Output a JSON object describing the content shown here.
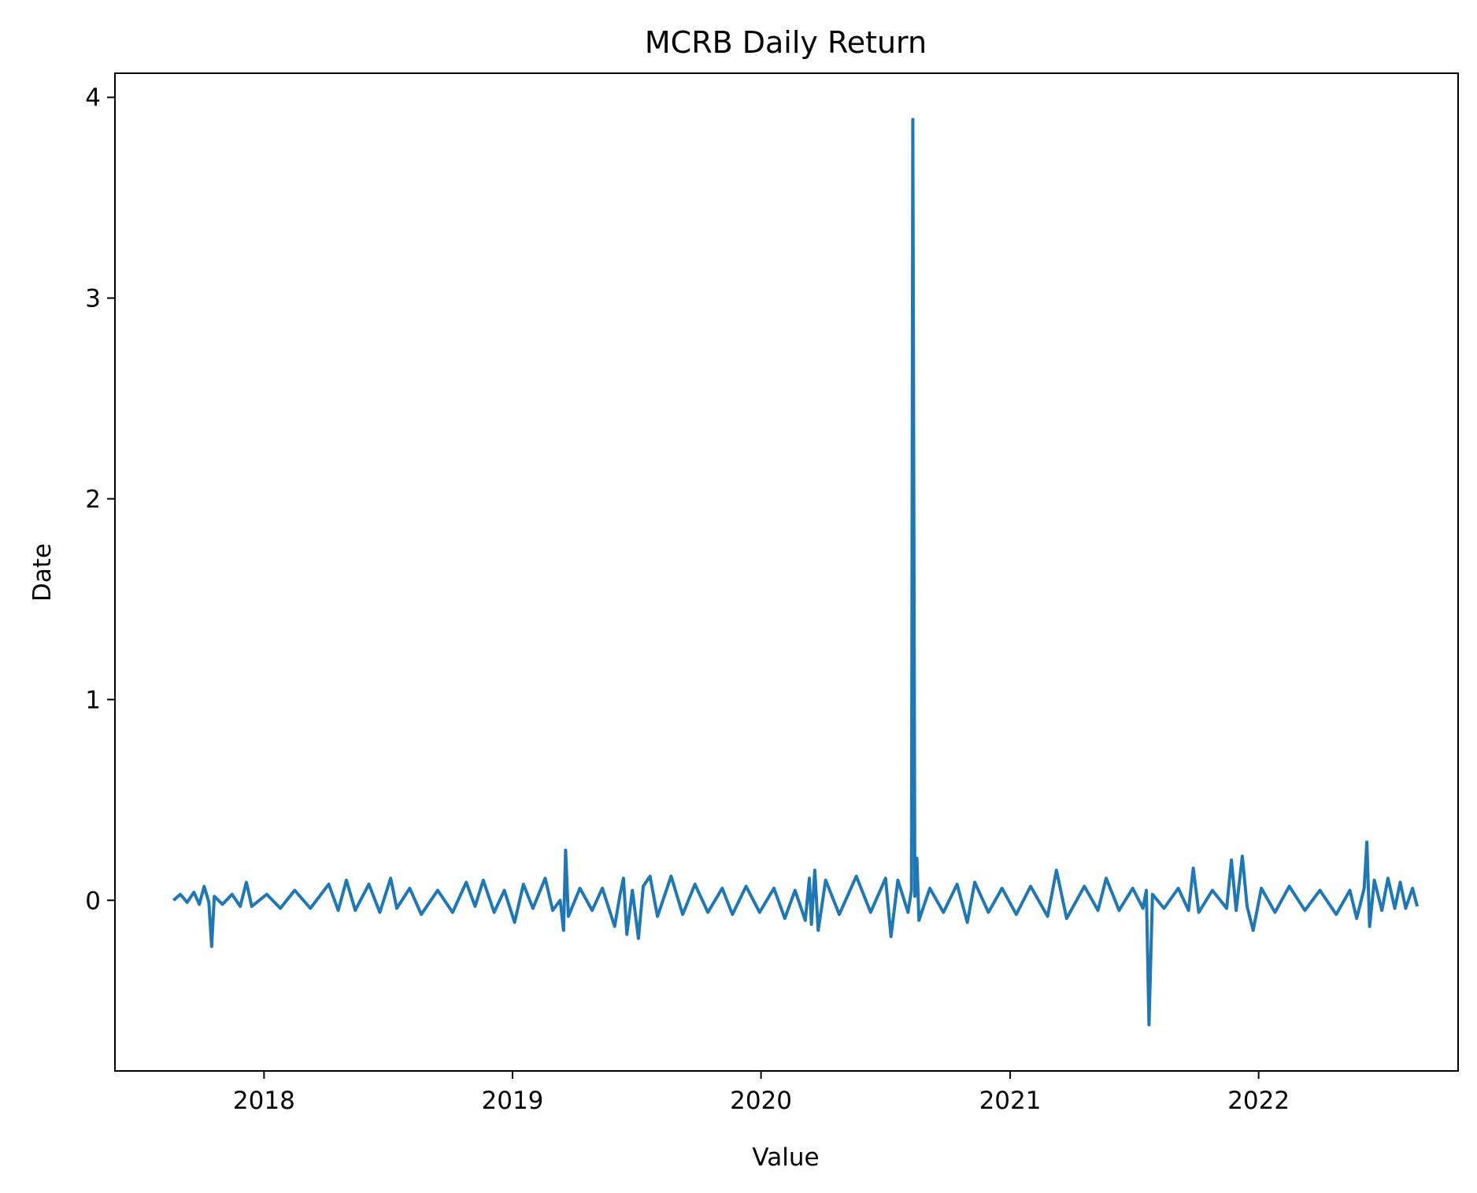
{
  "chart_data": {
    "type": "line",
    "title": "MCRB Daily Return",
    "xlabel": "Value",
    "ylabel": "Date",
    "x_ticks": [
      "2018",
      "2019",
      "2020",
      "2021",
      "2022"
    ],
    "y_ticks": [
      "0",
      "1",
      "2",
      "3",
      "4"
    ],
    "xlim": [
      "2017-05-27",
      "2022-10-21"
    ],
    "ylim": [
      -0.85,
      4.12
    ],
    "grid": false,
    "legend": "none",
    "series": [
      {
        "color": "#1f77b4",
        "points": [
          [
            "2017-08-21",
            0.0
          ],
          [
            "2017-08-31",
            0.03
          ],
          [
            "2017-09-10",
            -0.01
          ],
          [
            "2017-09-20",
            0.04
          ],
          [
            "2017-09-28",
            -0.02
          ],
          [
            "2017-10-05",
            0.07
          ],
          [
            "2017-10-12",
            -0.01
          ],
          [
            "2017-10-16",
            -0.23
          ],
          [
            "2017-10-20",
            0.02
          ],
          [
            "2017-11-01",
            -0.02
          ],
          [
            "2017-11-15",
            0.03
          ],
          [
            "2017-11-27",
            -0.03
          ],
          [
            "2017-12-06",
            0.09
          ],
          [
            "2017-12-14",
            -0.03
          ],
          [
            "2018-01-05",
            0.03
          ],
          [
            "2018-01-25",
            -0.04
          ],
          [
            "2018-02-15",
            0.05
          ],
          [
            "2018-03-10",
            -0.04
          ],
          [
            "2018-04-06",
            0.08
          ],
          [
            "2018-04-20",
            -0.05
          ],
          [
            "2018-05-02",
            0.1
          ],
          [
            "2018-05-15",
            -0.05
          ],
          [
            "2018-06-04",
            0.08
          ],
          [
            "2018-06-20",
            -0.06
          ],
          [
            "2018-07-06",
            0.11
          ],
          [
            "2018-07-15",
            -0.04
          ],
          [
            "2018-08-03",
            0.06
          ],
          [
            "2018-08-20",
            -0.07
          ],
          [
            "2018-09-13",
            0.05
          ],
          [
            "2018-10-05",
            -0.06
          ],
          [
            "2018-10-25",
            0.09
          ],
          [
            "2018-11-07",
            -0.03
          ],
          [
            "2018-11-19",
            0.1
          ],
          [
            "2018-12-05",
            -0.06
          ],
          [
            "2018-12-20",
            0.05
          ],
          [
            "2019-01-04",
            -0.11
          ],
          [
            "2019-01-17",
            0.08
          ],
          [
            "2019-01-31",
            -0.04
          ],
          [
            "2019-02-18",
            0.11
          ],
          [
            "2019-03-01",
            -0.05
          ],
          [
            "2019-03-12",
            0.0
          ],
          [
            "2019-03-17",
            -0.15
          ],
          [
            "2019-03-20",
            0.25
          ],
          [
            "2019-03-24",
            -0.08
          ],
          [
            "2019-04-10",
            0.06
          ],
          [
            "2019-04-28",
            -0.05
          ],
          [
            "2019-05-13",
            0.06
          ],
          [
            "2019-05-31",
            -0.13
          ],
          [
            "2019-06-08",
            0.03
          ],
          [
            "2019-06-13",
            0.11
          ],
          [
            "2019-06-18",
            -0.17
          ],
          [
            "2019-06-26",
            0.05
          ],
          [
            "2019-07-05",
            -0.19
          ],
          [
            "2019-07-12",
            0.07
          ],
          [
            "2019-07-22",
            0.12
          ],
          [
            "2019-08-02",
            -0.08
          ],
          [
            "2019-08-22",
            0.12
          ],
          [
            "2019-09-08",
            -0.07
          ],
          [
            "2019-09-26",
            0.08
          ],
          [
            "2019-10-15",
            -0.06
          ],
          [
            "2019-11-05",
            0.06
          ],
          [
            "2019-11-20",
            -0.07
          ],
          [
            "2019-12-10",
            0.07
          ],
          [
            "2019-12-30",
            -0.06
          ],
          [
            "2020-01-20",
            0.06
          ],
          [
            "2020-02-05",
            -0.09
          ],
          [
            "2020-02-20",
            0.05
          ],
          [
            "2020-03-06",
            -0.1
          ],
          [
            "2020-03-12",
            0.11
          ],
          [
            "2020-03-15",
            -0.12
          ],
          [
            "2020-03-20",
            0.15
          ],
          [
            "2020-03-25",
            -0.15
          ],
          [
            "2020-04-05",
            0.1
          ],
          [
            "2020-04-25",
            -0.07
          ],
          [
            "2020-05-20",
            0.12
          ],
          [
            "2020-06-10",
            -0.06
          ],
          [
            "2020-07-02",
            0.11
          ],
          [
            "2020-07-10",
            -0.18
          ],
          [
            "2020-07-20",
            0.1
          ],
          [
            "2020-08-04",
            -0.06
          ],
          [
            "2020-08-09",
            0.05
          ],
          [
            "2020-08-11",
            3.89
          ],
          [
            "2020-08-14",
            0.02
          ],
          [
            "2020-08-17",
            0.21
          ],
          [
            "2020-08-20",
            -0.1
          ],
          [
            "2020-09-05",
            0.06
          ],
          [
            "2020-09-25",
            -0.06
          ],
          [
            "2020-10-15",
            0.08
          ],
          [
            "2020-10-30",
            -0.11
          ],
          [
            "2020-11-10",
            0.09
          ],
          [
            "2020-11-30",
            -0.06
          ],
          [
            "2020-12-20",
            0.06
          ],
          [
            "2021-01-10",
            -0.07
          ],
          [
            "2021-01-31",
            0.07
          ],
          [
            "2021-02-25",
            -0.08
          ],
          [
            "2021-03-10",
            0.15
          ],
          [
            "2021-03-25",
            -0.09
          ],
          [
            "2021-04-20",
            0.07
          ],
          [
            "2021-05-10",
            -0.05
          ],
          [
            "2021-05-22",
            0.11
          ],
          [
            "2021-06-10",
            -0.05
          ],
          [
            "2021-06-30",
            0.06
          ],
          [
            "2021-07-15",
            -0.04
          ],
          [
            "2021-07-20",
            0.05
          ],
          [
            "2021-07-24",
            -0.62
          ],
          [
            "2021-07-29",
            0.03
          ],
          [
            "2021-08-15",
            -0.04
          ],
          [
            "2021-09-05",
            0.06
          ],
          [
            "2021-09-20",
            -0.05
          ],
          [
            "2021-09-27",
            0.16
          ],
          [
            "2021-10-05",
            -0.06
          ],
          [
            "2021-10-25",
            0.05
          ],
          [
            "2021-11-15",
            -0.04
          ],
          [
            "2021-11-22",
            0.2
          ],
          [
            "2021-11-29",
            -0.05
          ],
          [
            "2021-12-08",
            0.22
          ],
          [
            "2021-12-15",
            -0.03
          ],
          [
            "2021-12-24",
            -0.15
          ],
          [
            "2022-01-05",
            0.06
          ],
          [
            "2022-01-25",
            -0.06
          ],
          [
            "2022-02-15",
            0.07
          ],
          [
            "2022-03-10",
            -0.05
          ],
          [
            "2022-04-01",
            0.05
          ],
          [
            "2022-04-25",
            -0.07
          ],
          [
            "2022-05-15",
            0.05
          ],
          [
            "2022-05-25",
            -0.09
          ],
          [
            "2022-06-05",
            0.06
          ],
          [
            "2022-06-09",
            0.29
          ],
          [
            "2022-06-13",
            -0.13
          ],
          [
            "2022-06-20",
            0.1
          ],
          [
            "2022-07-01",
            -0.05
          ],
          [
            "2022-07-10",
            0.11
          ],
          [
            "2022-07-20",
            -0.04
          ],
          [
            "2022-07-28",
            0.09
          ],
          [
            "2022-08-05",
            -0.04
          ],
          [
            "2022-08-15",
            0.06
          ],
          [
            "2022-08-22",
            -0.03
          ]
        ]
      }
    ]
  }
}
